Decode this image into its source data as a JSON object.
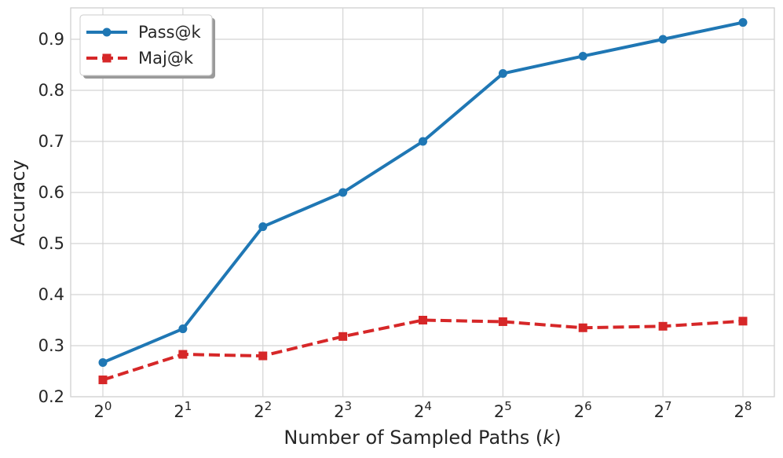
{
  "chart_data": {
    "type": "line",
    "title": "",
    "xlabel": "Number of Sampled Paths",
    "xlabel_var": "k",
    "ylabel": "Accuracy",
    "x": [
      {
        "base": "2",
        "exp": "0"
      },
      {
        "base": "2",
        "exp": "1"
      },
      {
        "base": "2",
        "exp": "2"
      },
      {
        "base": "2",
        "exp": "3"
      },
      {
        "base": "2",
        "exp": "4"
      },
      {
        "base": "2",
        "exp": "5"
      },
      {
        "base": "2",
        "exp": "6"
      },
      {
        "base": "2",
        "exp": "7"
      },
      {
        "base": "2",
        "exp": "8"
      }
    ],
    "x_scale": "log2",
    "ylim": [
      0.2,
      0.95
    ],
    "yticks": [
      "0.2",
      "0.3",
      "0.4",
      "0.5",
      "0.6",
      "0.7",
      "0.8",
      "0.9"
    ],
    "grid": true,
    "legend_position": "top-left",
    "series": [
      {
        "name": "Pass@k",
        "color": "#1f77b4",
        "marker": "circle",
        "linestyle": "solid",
        "values": [
          0.267,
          0.333,
          0.533,
          0.6,
          0.7,
          0.833,
          0.867,
          0.9,
          0.933
        ]
      },
      {
        "name": "Maj@k",
        "color": "#d62728",
        "marker": "square",
        "linestyle": "dashed",
        "values": [
          0.233,
          0.283,
          0.28,
          0.318,
          0.35,
          0.347,
          0.335,
          0.338,
          0.348
        ]
      }
    ]
  }
}
